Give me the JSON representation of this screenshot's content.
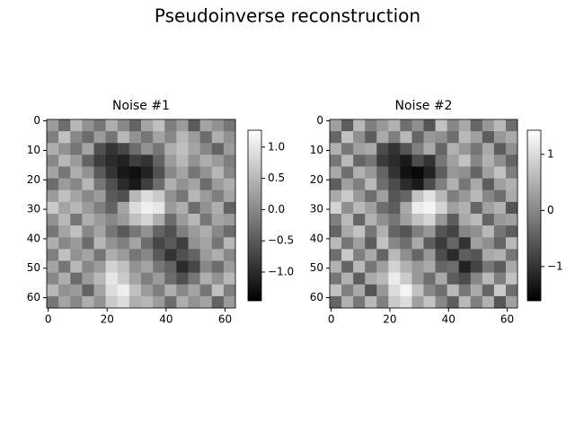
{
  "title": "Pseudoinverse reconstruction",
  "chart_data": [
    {
      "type": "heatmap",
      "title": "Noise #1",
      "colormap": "gray",
      "xlim": [
        -0.5,
        63.5
      ],
      "ylim": [
        63.5,
        -0.5
      ],
      "xticks": [
        0,
        20,
        40,
        60
      ],
      "yticks": [
        0,
        10,
        20,
        30,
        40,
        50,
        60
      ],
      "clim": [
        -1.46,
        1.27
      ],
      "cticks": [
        {
          "value": -1.0,
          "label": "−1.0"
        },
        {
          "value": -0.5,
          "label": "−0.5"
        },
        {
          "value": 0.0,
          "label": "0.0"
        },
        0.5,
        {
          "value": 1.0,
          "label": "1.0"
        }
      ],
      "z": [
        [
          0.2,
          -0.3,
          0.5,
          0.1,
          -0.2,
          0.4,
          0.0,
          -0.4,
          0.3,
          0.6,
          -0.1,
          0.2,
          -0.5,
          0.3,
          0.1,
          -0.2
        ],
        [
          -0.1,
          0.6,
          0.0,
          -0.3,
          0.2,
          -0.2,
          0.5,
          0.1,
          -0.2,
          0.3,
          0.0,
          0.5,
          0.2,
          -0.3,
          0.4,
          0.1
        ],
        [
          0.4,
          0.1,
          -0.2,
          0.3,
          -0.6,
          -0.9,
          -0.7,
          -0.3,
          0.1,
          -0.2,
          0.4,
          0.6,
          0.3,
          0.0,
          -0.4,
          0.2
        ],
        [
          0.0,
          0.5,
          0.2,
          -0.4,
          -0.8,
          -1.0,
          -1.1,
          -0.8,
          -0.9,
          -0.4,
          0.2,
          0.5,
          0.1,
          0.4,
          0.2,
          -0.1
        ],
        [
          0.3,
          -0.2,
          0.4,
          0.1,
          -0.5,
          -0.9,
          -1.2,
          -1.3,
          -1.1,
          -0.6,
          0.0,
          0.3,
          -0.2,
          0.1,
          0.5,
          0.0
        ],
        [
          -0.3,
          0.2,
          0.0,
          0.5,
          -0.2,
          -0.6,
          -1.0,
          -1.2,
          -0.8,
          -0.3,
          0.4,
          0.1,
          0.3,
          -0.3,
          0.2,
          0.4
        ],
        [
          0.2,
          0.6,
          0.3,
          0.0,
          0.2,
          -0.5,
          -0.6,
          0.5,
          0.9,
          0.7,
          0.1,
          -0.2,
          0.5,
          0.2,
          -0.1,
          0.3
        ],
        [
          0.7,
          0.3,
          0.5,
          0.2,
          -0.1,
          -0.4,
          0.3,
          0.9,
          1.1,
          1.0,
          0.2,
          0.4,
          -0.3,
          0.1,
          0.4,
          -0.4
        ],
        [
          0.1,
          0.5,
          -0.2,
          0.4,
          0.2,
          0.0,
          0.2,
          0.6,
          0.8,
          0.4,
          -0.3,
          0.2,
          0.5,
          -0.2,
          0.3,
          0.2
        ],
        [
          -0.2,
          0.3,
          0.6,
          0.0,
          0.3,
          -0.2,
          -0.5,
          -0.2,
          0.1,
          -0.4,
          -0.6,
          -0.1,
          0.2,
          0.4,
          0.0,
          -0.3
        ],
        [
          0.4,
          0.0,
          0.2,
          -0.3,
          0.5,
          0.1,
          -0.1,
          0.3,
          -0.3,
          -0.7,
          -0.5,
          -0.8,
          0.1,
          0.3,
          -0.2,
          0.5
        ],
        [
          -0.1,
          0.6,
          0.1,
          0.3,
          -0.2,
          0.4,
          0.2,
          -0.2,
          0.0,
          -0.5,
          -0.9,
          -0.6,
          -0.4,
          0.2,
          0.4,
          0.0
        ],
        [
          0.3,
          -0.2,
          0.5,
          0.0,
          0.2,
          0.8,
          0.6,
          0.1,
          0.3,
          -0.2,
          -0.4,
          -1.0,
          -0.7,
          0.0,
          -0.3,
          0.2
        ],
        [
          0.0,
          0.4,
          -0.3,
          0.2,
          0.5,
          1.0,
          0.7,
          0.3,
          -0.1,
          0.2,
          -0.3,
          -0.6,
          -0.2,
          0.4,
          0.1,
          0.5
        ],
        [
          0.5,
          0.1,
          0.2,
          -0.4,
          0.3,
          0.9,
          1.1,
          0.6,
          0.2,
          -0.1,
          0.4,
          0.0,
          0.3,
          -0.2,
          0.6,
          -0.1
        ],
        [
          -0.2,
          0.3,
          0.0,
          0.4,
          0.1,
          0.7,
          0.9,
          0.4,
          0.5,
          0.2,
          -0.3,
          0.4,
          0.1,
          0.3,
          -0.4,
          0.2
        ]
      ]
    },
    {
      "type": "heatmap",
      "title": "Noise #2",
      "colormap": "gray",
      "xlim": [
        -0.5,
        63.5
      ],
      "ylim": [
        63.5,
        -0.5
      ],
      "xticks": [
        0,
        20,
        40,
        60
      ],
      "yticks": [
        0,
        10,
        20,
        30,
        40,
        50,
        60
      ],
      "clim": [
        -1.61,
        1.43
      ],
      "cticks": [
        {
          "value": -1,
          "label": "−1"
        },
        0,
        1
      ],
      "z": [
        [
          0.3,
          -0.5,
          0.6,
          -0.1,
          0.2,
          0.5,
          -0.3,
          0.1,
          -0.6,
          0.7,
          0.0,
          0.4,
          -0.4,
          0.2,
          0.6,
          -0.3
        ],
        [
          -0.4,
          0.7,
          0.1,
          -0.5,
          0.4,
          -0.1,
          0.6,
          -0.4,
          0.2,
          0.1,
          -0.3,
          0.6,
          0.3,
          -0.5,
          0.2,
          0.4
        ],
        [
          0.5,
          -0.2,
          0.3,
          0.4,
          -0.7,
          -1.0,
          -0.6,
          -0.1,
          0.4,
          -0.4,
          0.5,
          0.2,
          -0.2,
          0.4,
          -0.5,
          0.1
        ],
        [
          -0.2,
          0.6,
          -0.4,
          -0.2,
          -0.9,
          -1.1,
          -1.3,
          -0.7,
          -1.0,
          -0.2,
          0.3,
          0.7,
          0.0,
          0.5,
          0.1,
          -0.4
        ],
        [
          0.4,
          -0.3,
          0.5,
          0.2,
          -0.4,
          -1.0,
          -1.4,
          -1.5,
          -1.2,
          -0.5,
          0.2,
          0.1,
          -0.4,
          0.3,
          0.7,
          -0.1
        ],
        [
          -0.5,
          0.3,
          -0.1,
          0.6,
          -0.3,
          -0.7,
          -1.1,
          -1.3,
          -0.7,
          -0.1,
          0.5,
          -0.2,
          0.4,
          -0.5,
          0.3,
          0.5
        ],
        [
          0.4,
          0.8,
          0.2,
          -0.3,
          0.3,
          -0.6,
          -0.4,
          0.7,
          1.1,
          0.6,
          -0.1,
          0.2,
          0.6,
          0.0,
          -0.3,
          0.4
        ],
        [
          0.9,
          0.1,
          0.6,
          0.3,
          -0.3,
          -0.5,
          0.4,
          1.2,
          1.3,
          0.9,
          0.3,
          0.5,
          -0.4,
          0.3,
          0.5,
          -0.6
        ],
        [
          -0.1,
          0.6,
          -0.4,
          0.5,
          0.1,
          -0.2,
          0.3,
          0.7,
          0.9,
          0.2,
          -0.5,
          0.4,
          0.6,
          -0.4,
          0.2,
          0.3
        ],
        [
          -0.4,
          0.4,
          0.7,
          -0.2,
          0.5,
          -0.4,
          -0.6,
          -0.1,
          0.2,
          -0.6,
          -0.8,
          0.0,
          0.1,
          0.6,
          -0.2,
          -0.5
        ],
        [
          0.6,
          -0.2,
          0.3,
          -0.5,
          0.7,
          0.0,
          -0.3,
          0.4,
          -0.5,
          -0.9,
          -0.4,
          -1.0,
          0.3,
          0.1,
          -0.4,
          0.6
        ],
        [
          -0.3,
          0.8,
          -0.1,
          0.4,
          -0.4,
          0.6,
          0.1,
          -0.4,
          0.2,
          -0.7,
          -1.1,
          -0.5,
          -0.6,
          0.4,
          0.5,
          -0.2
        ],
        [
          0.5,
          -0.4,
          0.6,
          -0.2,
          0.3,
          0.9,
          0.5,
          0.2,
          0.4,
          -0.4,
          -0.3,
          -1.2,
          -0.8,
          -0.2,
          -0.5,
          0.4
        ],
        [
          -0.2,
          0.5,
          -0.5,
          0.4,
          0.6,
          1.2,
          0.8,
          0.2,
          -0.3,
          0.4,
          -0.5,
          -0.7,
          0.0,
          0.6,
          -0.1,
          0.7
        ],
        [
          0.7,
          -0.1,
          0.4,
          -0.6,
          0.2,
          1.0,
          1.3,
          0.7,
          0.0,
          -0.3,
          0.6,
          -0.2,
          0.4,
          -0.4,
          0.8,
          -0.3
        ],
        [
          -0.4,
          0.5,
          -0.2,
          0.6,
          -0.1,
          0.8,
          1.0,
          0.3,
          0.7,
          0.0,
          -0.5,
          0.6,
          -0.1,
          0.5,
          -0.6,
          0.3
        ]
      ]
    }
  ]
}
